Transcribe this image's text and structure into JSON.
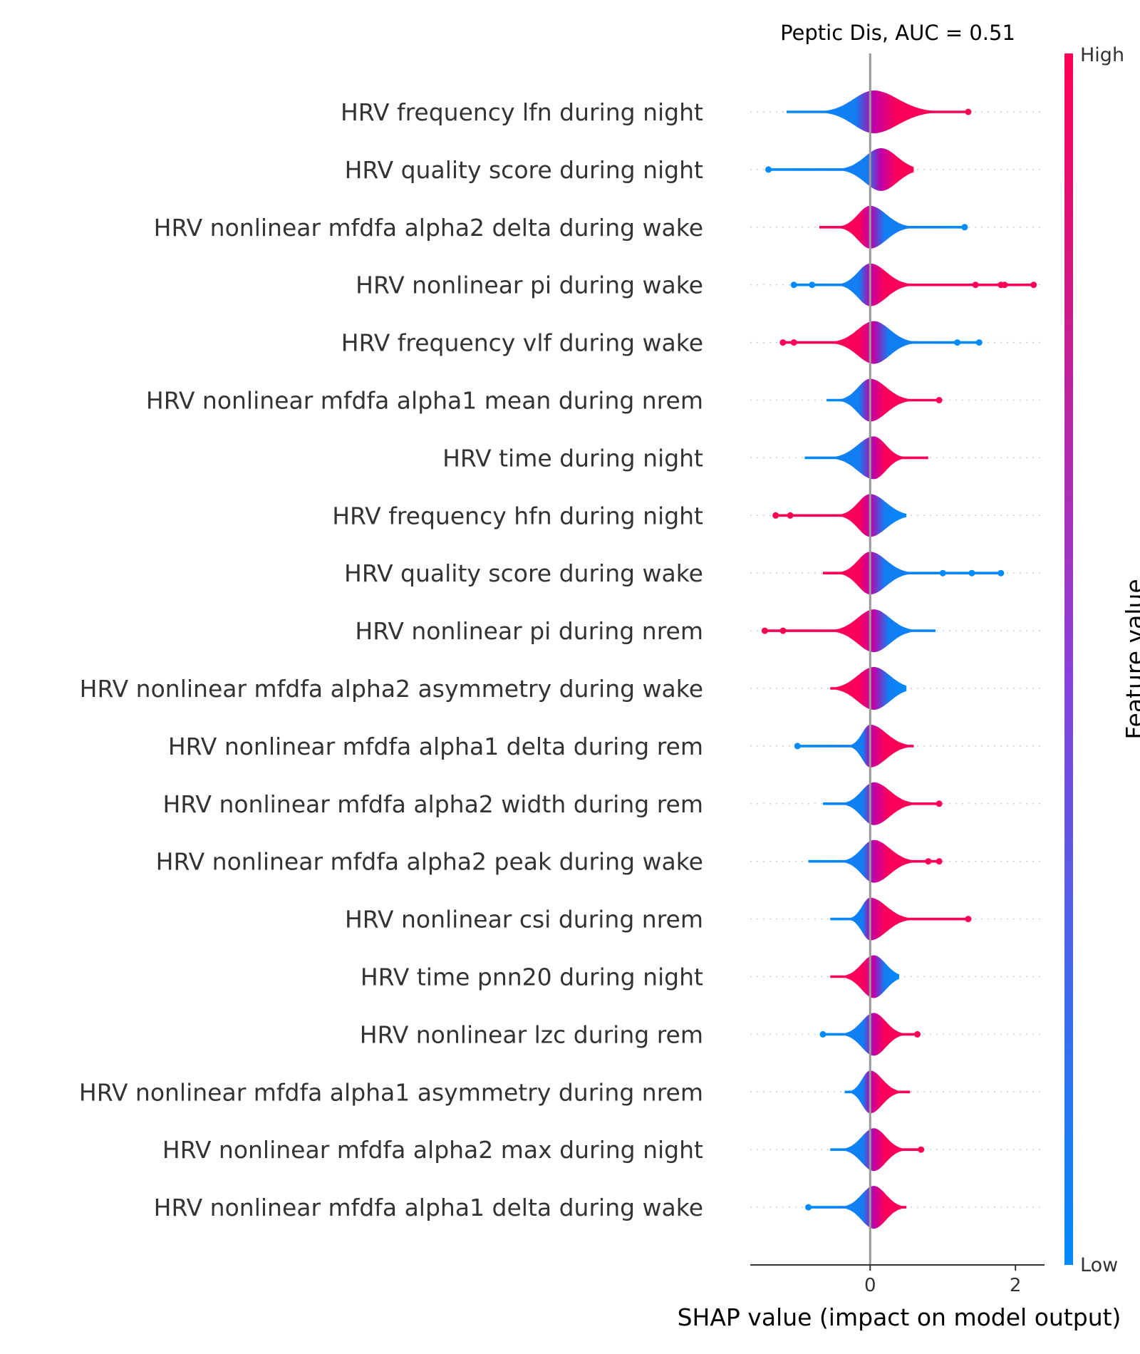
{
  "chart_data": {
    "type": "violin",
    "title": "Peptic Dis, AUC =  0.51",
    "xlabel": "SHAP value (impact on model output)",
    "xlim": [
      -1.65,
      2.4
    ],
    "xticks": [
      0,
      2
    ],
    "colorbar": {
      "label": "Feature value",
      "high_label": "High",
      "low_label": "Low",
      "high_color": "#ff0052",
      "low_color": "#008bfb",
      "mid_color": "#c000a8"
    },
    "features": [
      {
        "name": "HRV frequency lfn during night",
        "min": -1.15,
        "max": 1.35,
        "q1": -0.2,
        "median": 0.05,
        "q3": 0.35,
        "low_side": "low",
        "outliers_low": [],
        "outliers_high": [
          1.35
        ]
      },
      {
        "name": "HRV quality score during night",
        "min": -1.4,
        "max": 0.6,
        "q1": -0.05,
        "median": 0.15,
        "q3": 0.35,
        "low_side": "low",
        "outliers_low": [
          -1.4
        ],
        "outliers_high": []
      },
      {
        "name": "HRV nonlinear mfdfa alpha2 delta during wake",
        "min": -0.7,
        "max": 1.3,
        "q1": -0.15,
        "median": 0.0,
        "q3": 0.2,
        "low_side": "high",
        "outliers_low": [],
        "outliers_high": [
          1.3
        ]
      },
      {
        "name": "HRV nonlinear pi during wake",
        "min": -1.05,
        "max": 2.25,
        "q1": -0.15,
        "median": 0.0,
        "q3": 0.2,
        "low_side": "low",
        "outliers_low": [
          -1.05,
          -0.8
        ],
        "outliers_high": [
          1.45,
          1.8,
          1.85,
          2.25
        ]
      },
      {
        "name": "HRV frequency vlf during wake",
        "min": -1.2,
        "max": 1.5,
        "q1": -0.15,
        "median": 0.05,
        "q3": 0.25,
        "low_side": "high",
        "outliers_low": [
          -1.2,
          -1.05
        ],
        "outliers_high": [
          1.2,
          1.5
        ]
      },
      {
        "name": "HRV nonlinear mfdfa alpha1 mean during nrem",
        "min": -0.6,
        "max": 0.95,
        "q1": -0.15,
        "median": 0.0,
        "q3": 0.2,
        "low_side": "low",
        "outliers_low": [],
        "outliers_high": [
          0.95
        ]
      },
      {
        "name": "HRV time during night",
        "min": -0.9,
        "max": 0.8,
        "q1": -0.15,
        "median": 0.05,
        "q3": 0.2,
        "low_side": "low",
        "outliers_low": [],
        "outliers_high": []
      },
      {
        "name": "HRV frequency hfn during night",
        "min": -1.3,
        "max": 0.5,
        "q1": -0.15,
        "median": 0.0,
        "q3": 0.2,
        "low_side": "high",
        "outliers_low": [
          -1.3,
          -1.1
        ],
        "outliers_high": []
      },
      {
        "name": "HRV quality score during wake",
        "min": -0.65,
        "max": 1.8,
        "q1": -0.15,
        "median": 0.0,
        "q3": 0.2,
        "low_side": "high",
        "outliers_low": [],
        "outliers_high": [
          1.0,
          1.4,
          1.8
        ]
      },
      {
        "name": "HRV nonlinear pi during nrem",
        "min": -1.45,
        "max": 0.9,
        "q1": -0.15,
        "median": 0.05,
        "q3": 0.25,
        "low_side": "high",
        "outliers_low": [
          -1.45,
          -1.2
        ],
        "outliers_high": []
      },
      {
        "name": "HRV nonlinear mfdfa alpha2 asymmetry during wake",
        "min": -0.55,
        "max": 0.5,
        "q1": -0.15,
        "median": 0.05,
        "q3": 0.25,
        "low_side": "high",
        "outliers_low": [],
        "outliers_high": []
      },
      {
        "name": "HRV nonlinear mfdfa alpha1 delta during rem",
        "min": -1.0,
        "max": 0.6,
        "q1": -0.1,
        "median": 0.0,
        "q3": 0.2,
        "low_side": "low",
        "outliers_low": [
          -1.0
        ],
        "outliers_high": []
      },
      {
        "name": "HRV nonlinear mfdfa alpha2 width during rem",
        "min": -0.65,
        "max": 0.95,
        "q1": -0.1,
        "median": 0.05,
        "q3": 0.25,
        "low_side": "low",
        "outliers_low": [],
        "outliers_high": [
          0.95
        ]
      },
      {
        "name": "HRV nonlinear mfdfa alpha2 peak during wake",
        "min": -0.85,
        "max": 0.95,
        "q1": -0.1,
        "median": 0.05,
        "q3": 0.25,
        "low_side": "low",
        "outliers_low": [],
        "outliers_high": [
          0.8,
          0.95
        ]
      },
      {
        "name": "HRV nonlinear csi during nrem",
        "min": -0.55,
        "max": 1.35,
        "q1": -0.1,
        "median": 0.0,
        "q3": 0.2,
        "low_side": "low",
        "outliers_low": [],
        "outliers_high": [
          1.35
        ]
      },
      {
        "name": "HRV time pnn20 during night",
        "min": -0.55,
        "max": 0.4,
        "q1": -0.1,
        "median": 0.05,
        "q3": 0.2,
        "low_side": "high",
        "outliers_low": [],
        "outliers_high": []
      },
      {
        "name": "HRV nonlinear lzc during rem",
        "min": -0.65,
        "max": 0.65,
        "q1": -0.1,
        "median": 0.05,
        "q3": 0.2,
        "low_side": "low",
        "outliers_low": [
          -0.65
        ],
        "outliers_high": [
          0.65
        ]
      },
      {
        "name": "HRV nonlinear mfdfa alpha1 asymmetry during nrem",
        "min": -0.35,
        "max": 0.55,
        "q1": -0.1,
        "median": 0.0,
        "q3": 0.15,
        "low_side": "low",
        "outliers_low": [],
        "outliers_high": []
      },
      {
        "name": "HRV nonlinear mfdfa alpha2 max during night",
        "min": -0.55,
        "max": 0.7,
        "q1": -0.1,
        "median": 0.05,
        "q3": 0.2,
        "low_side": "low",
        "outliers_low": [],
        "outliers_high": [
          0.7
        ]
      },
      {
        "name": "HRV nonlinear mfdfa alpha1 delta during wake",
        "min": -0.85,
        "max": 0.5,
        "q1": -0.1,
        "median": 0.05,
        "q3": 0.2,
        "low_side": "low",
        "outliers_low": [
          -0.85
        ],
        "outliers_high": []
      }
    ]
  }
}
